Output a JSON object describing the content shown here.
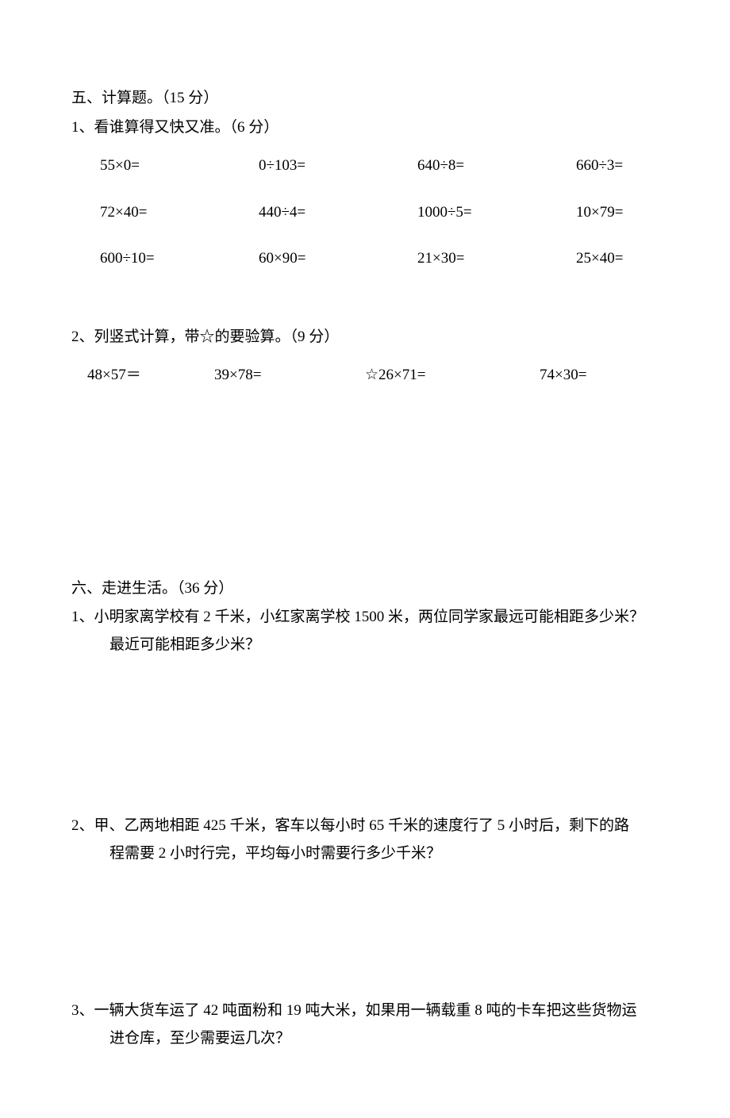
{
  "section5": {
    "title": "五、计算题。（15 分）",
    "q1": {
      "title": "1、看谁算得又快又准。（6 分）",
      "cells": [
        "55×0=",
        "0÷103=",
        "640÷8=",
        "660÷3=",
        "72×40=",
        "440÷4=",
        "1000÷5=",
        "10×79=",
        "600÷10=",
        "60×90=",
        "21×30=",
        "25×40="
      ]
    },
    "q2": {
      "title": "2、列竖式计算，带☆的要验算。（9 分）",
      "cells": [
        "48×57＝",
        "39×78=",
        "☆26×71=",
        "74×30="
      ]
    }
  },
  "section6": {
    "title": "六、走进生活。（36 分）",
    "q1_line1": "1、小明家离学校有 2 千米，小红家离学校 1500 米，两位同学家最远可能相距多少米？",
    "q1_line2": "最近可能相距多少米？",
    "q2_line1": "2、甲、乙两地相距 425 千米，客车以每小时 65 千米的速度行了 5 小时后，剩下的路",
    "q2_line2": "程需要 2 小时行完，平均每小时需要行多少千米？",
    "q3_line1": "3、一辆大货车运了 42 吨面粉和 19 吨大米，如果用一辆载重 8 吨的卡车把这些货物运",
    "q3_line2": "进仓库，至少需要运几次？"
  }
}
